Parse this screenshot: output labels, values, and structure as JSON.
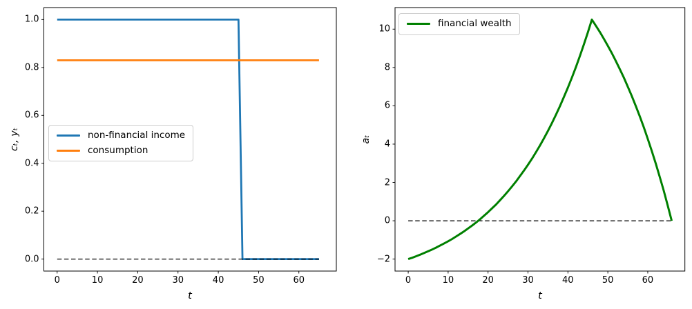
{
  "figure": {
    "background": "#ffffff"
  },
  "chart_data": [
    {
      "type": "line",
      "panel": "left",
      "title": "",
      "xlabel": "t",
      "ylabel": "cₜ, yₜ",
      "xlim": [
        -3.3,
        69.3
      ],
      "ylim": [
        -0.05,
        1.05
      ],
      "xticks": [
        0,
        10,
        20,
        30,
        40,
        50,
        60
      ],
      "xtick_labels": [
        "0",
        "10",
        "20",
        "30",
        "40",
        "50",
        "60"
      ],
      "yticks": [
        0.0,
        0.2,
        0.4,
        0.6,
        0.8,
        1.0
      ],
      "ytick_labels": [
        "0.0",
        "0.2",
        "0.4",
        "0.6",
        "0.8",
        "1.0"
      ],
      "grid": false,
      "legend_position": "center left",
      "series": [
        {
          "name": "non-financial income",
          "color": "#1f77b4",
          "style": "solid",
          "width": 2.8,
          "zorder": 1,
          "x": [
            0,
            45,
            46,
            65
          ],
          "y": [
            1,
            1,
            0,
            0
          ],
          "description": "step function: 1 for t <= 45, 0 for t = 46..65"
        },
        {
          "name": "consumption",
          "color": "#ff7f0e",
          "style": "solid",
          "width": 2.8,
          "zorder": 2,
          "x": [
            0,
            65
          ],
          "y": [
            0.83,
            0.83
          ],
          "description": "constant 0.83 for t = 0..65"
        },
        {
          "name": "zero reference",
          "color": "#000000",
          "style": "dashed",
          "width": 1.3,
          "zorder": 3,
          "in_legend": false,
          "x": [
            0,
            65
          ],
          "y": [
            0,
            0
          ]
        }
      ]
    },
    {
      "type": "line",
      "panel": "right",
      "title": "",
      "xlabel": "t",
      "ylabel": "aₜ",
      "xlim": [
        -3.3,
        69.3
      ],
      "ylim": [
        -2.625,
        11.125
      ],
      "xticks": [
        0,
        10,
        20,
        30,
        40,
        50,
        60
      ],
      "xtick_labels": [
        "0",
        "10",
        "20",
        "30",
        "40",
        "50",
        "60"
      ],
      "yticks": [
        -2,
        0,
        2,
        4,
        6,
        8,
        10
      ],
      "ytick_labels": [
        "−2",
        "0",
        "2",
        "4",
        "6",
        "8",
        "10"
      ],
      "grid": false,
      "legend_position": "upper left",
      "series": [
        {
          "name": "zero reference",
          "color": "#000000",
          "style": "dashed",
          "width": 1.3,
          "zorder": 1,
          "in_legend": false,
          "x": [
            0,
            66
          ],
          "y": [
            0,
            0
          ]
        },
        {
          "name": "financial wealth",
          "color": "#008000",
          "style": "solid",
          "width": 3,
          "zorder": 2,
          "x_from": 0,
          "y": [
            -2.0,
            -1.93,
            -1.85,
            -1.77,
            -1.68,
            -1.59,
            -1.5,
            -1.4,
            -1.29,
            -1.18,
            -1.07,
            -0.95,
            -0.82,
            -0.69,
            -0.55,
            -0.4,
            -0.25,
            -0.09,
            0.08,
            0.26,
            0.45,
            0.65,
            0.85,
            1.07,
            1.3,
            1.54,
            1.79,
            2.05,
            2.33,
            2.62,
            2.92,
            3.24,
            3.58,
            3.93,
            4.3,
            4.69,
            5.1,
            5.53,
            5.98,
            6.46,
            6.95,
            7.47,
            8.02,
            8.6,
            9.2,
            9.83,
            10.5,
            10.18,
            9.85,
            9.5,
            9.13,
            8.75,
            8.34,
            7.91,
            7.47,
            7.0,
            6.51,
            5.99,
            5.45,
            4.88,
            4.28,
            3.65,
            2.99,
            2.29,
            1.57,
            0.8,
            0.0
          ],
          "description": "starts at −2 at t=0, crosses 0 near t=17, peaks ≈10.5 at t=46, declines to 0 at t=66"
        }
      ]
    }
  ]
}
